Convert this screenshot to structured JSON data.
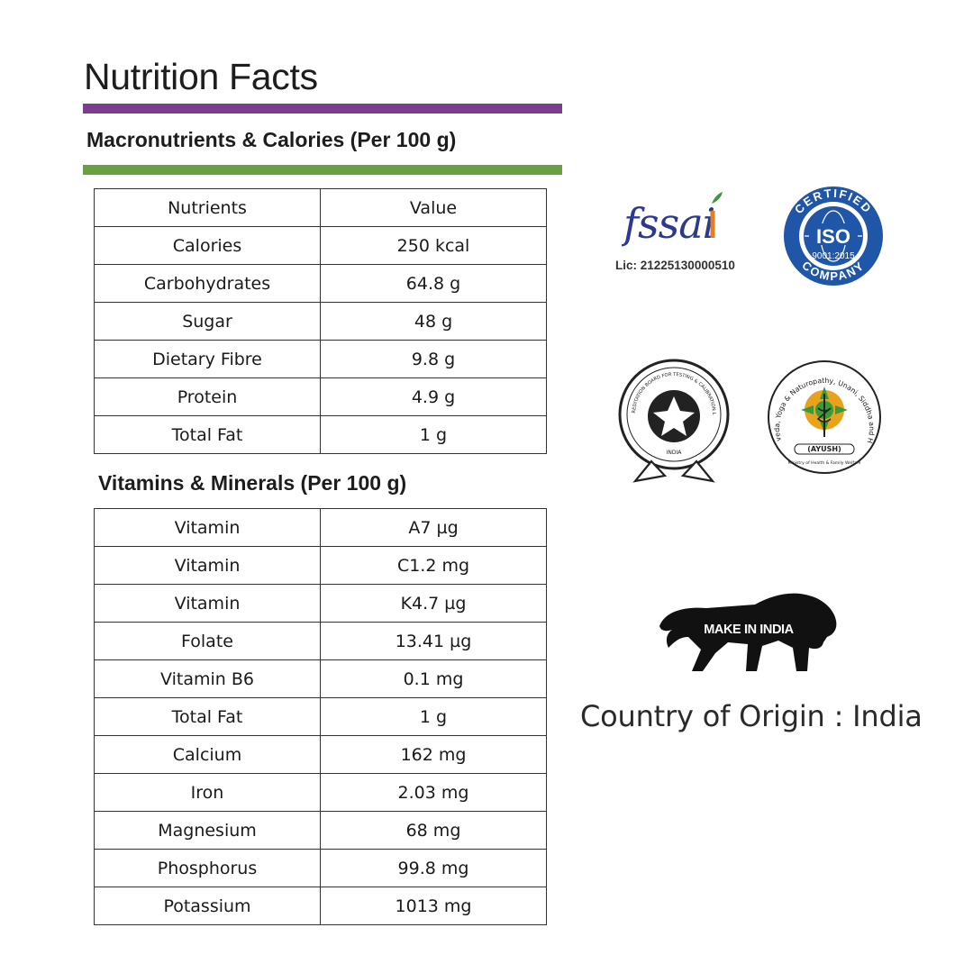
{
  "title": "Nutrition Facts",
  "colors": {
    "purple_bar": "#7a3d91",
    "green_bar": "#69a142",
    "iso_blue": "#1f56a8",
    "fssai_blue": "#2b3a8f",
    "fssai_orange": "#e67e1f"
  },
  "macros": {
    "heading": "Macronutrients & Calories (Per 100 g)",
    "header": {
      "nutrients": "Nutrients",
      "value": "Value"
    },
    "rows": [
      {
        "name": "Calories",
        "value": "250 kcal"
      },
      {
        "name": "Carbohydrates",
        "value": "64.8 g"
      },
      {
        "name": "Sugar",
        "value": "48 g"
      },
      {
        "name": "Dietary Fibre",
        "value": "9.8 g"
      },
      {
        "name": "Protein",
        "value": "4.9 g"
      },
      {
        "name": "Total Fat",
        "value": "1 g"
      }
    ]
  },
  "vitamins": {
    "heading": "Vitamins & Minerals (Per 100 g)",
    "rows": [
      {
        "name": "Vitamin",
        "value": "A7 µg"
      },
      {
        "name": "Vitamin",
        "value": "C1.2 mg"
      },
      {
        "name": "Vitamin",
        "value": "K4.7 µg"
      },
      {
        "name": "Folate",
        "value": "13.41 µg"
      },
      {
        "name": "Vitamin B6",
        "value": "0.1 mg"
      },
      {
        "name": "Total Fat",
        "value": "1 g"
      },
      {
        "name": "Calcium",
        "value": "162 mg"
      },
      {
        "name": "Iron",
        "value": "2.03 mg"
      },
      {
        "name": "Magnesium",
        "value": "68 mg"
      },
      {
        "name": "Phosphorus",
        "value": "99.8 mg"
      },
      {
        "name": "Potassium",
        "value": "1013 mg"
      }
    ]
  },
  "certifications": {
    "fssai_logo": "fssai",
    "fssai_license": "Lic: 21225130000510",
    "iso_top": "CERTIFIED",
    "iso_center": "ISO",
    "iso_number": "9001:2015",
    "iso_bottom": "COMPANY",
    "nabl_text": "NATIONAL ACCREDITATION BOARD FOR TESTING & CALIBRATION LABORATORIES",
    "nabl_country": "INDIA",
    "ayush_text": "Dept. of Ayurveda, Yoga & Naturopathy, Unani, Siddha and Homoeopathy",
    "ayush_label": "(AYUSH)",
    "ayush_ministry": "Ministry of Health & Family Welfare"
  },
  "make_in_india": "MAKE IN INDIA",
  "origin": "Country of Origin : India"
}
